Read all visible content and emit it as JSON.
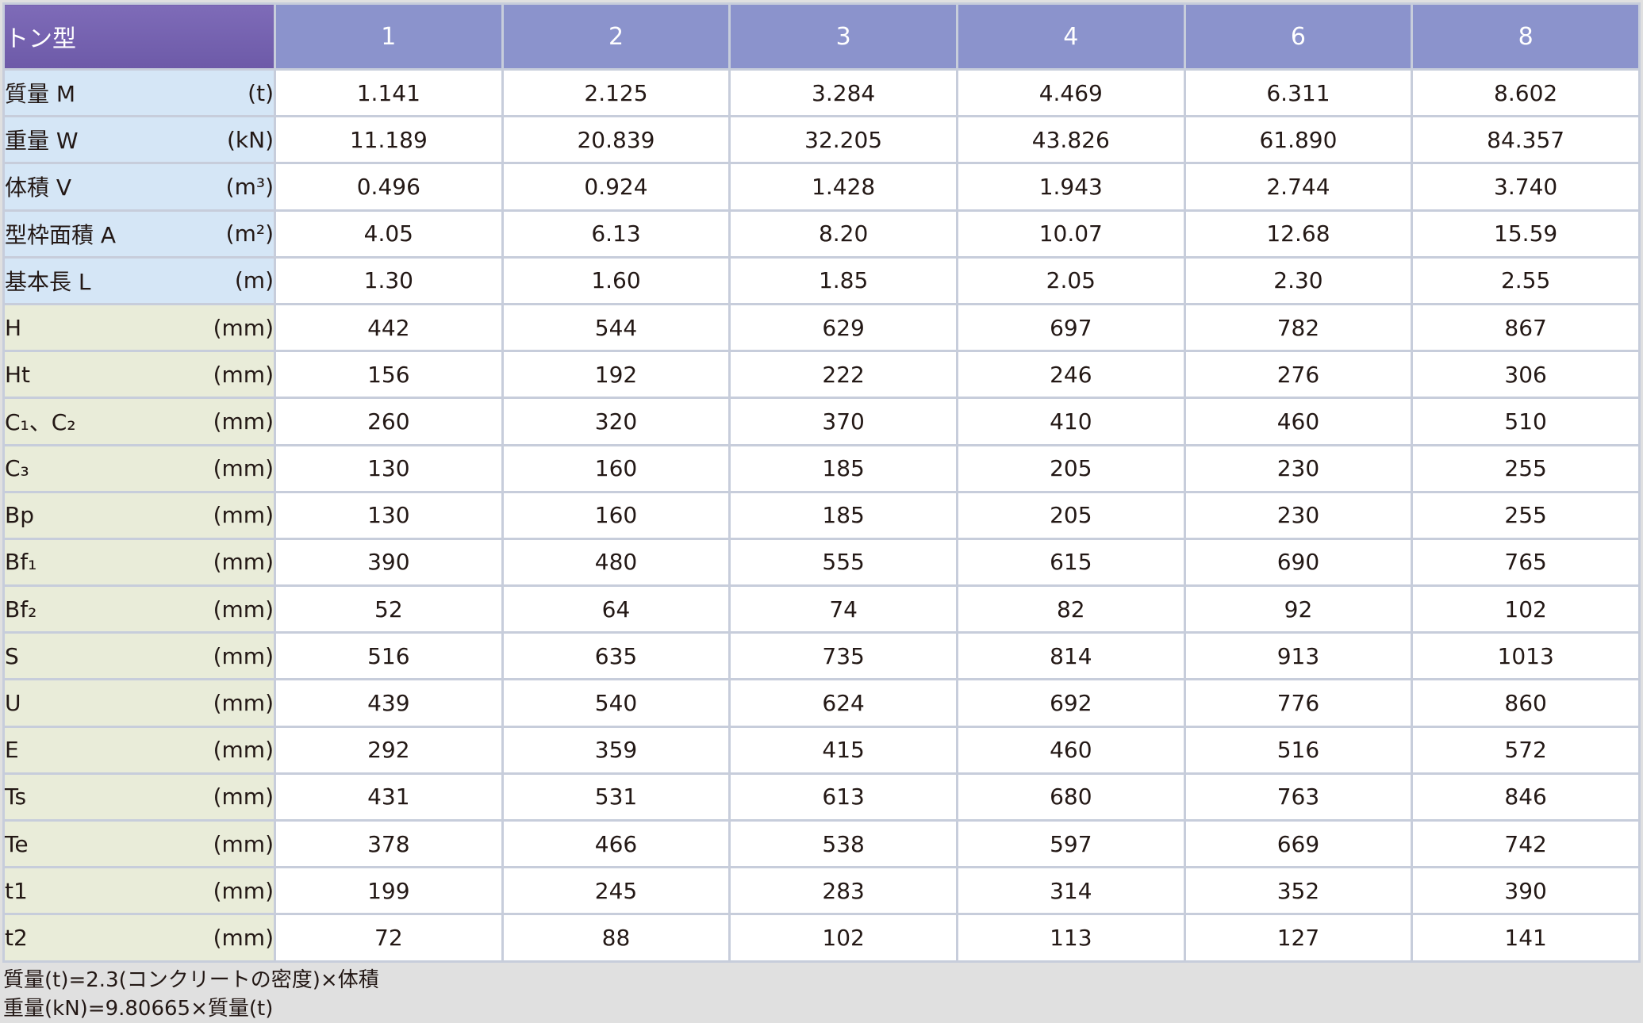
{
  "table": {
    "corner_label": "トン型",
    "columns": [
      "1",
      "2",
      "3",
      "4",
      "6",
      "8"
    ],
    "rows": [
      {
        "name": "質量 M",
        "unit": "(t)",
        "values": [
          "1.141",
          "2.125",
          "3.284",
          "4.469",
          "6.311",
          "8.602"
        ]
      },
      {
        "name": "重量 W",
        "unit": "(kN)",
        "values": [
          "11.189",
          "20.839",
          "32.205",
          "43.826",
          "61.890",
          "84.357"
        ]
      },
      {
        "name": "体積 V",
        "unit": "(m³)",
        "values": [
          "0.496",
          "0.924",
          "1.428",
          "1.943",
          "2.744",
          "3.740"
        ]
      },
      {
        "name": "型枠面積 A",
        "unit": "(m²)",
        "values": [
          "4.05",
          "6.13",
          "8.20",
          "10.07",
          "12.68",
          "15.59"
        ]
      },
      {
        "name": "基本長 L",
        "unit": "(m)",
        "values": [
          "1.30",
          "1.60",
          "1.85",
          "2.05",
          "2.30",
          "2.55"
        ]
      },
      {
        "name": "H",
        "unit": "(mm)",
        "values": [
          "442",
          "544",
          "629",
          "697",
          "782",
          "867"
        ]
      },
      {
        "name": "Ht",
        "unit": "(mm)",
        "values": [
          "156",
          "192",
          "222",
          "246",
          "276",
          "306"
        ]
      },
      {
        "name": "C₁、C₂",
        "unit": "(mm)",
        "values": [
          "260",
          "320",
          "370",
          "410",
          "460",
          "510"
        ]
      },
      {
        "name": "C₃",
        "unit": "(mm)",
        "values": [
          "130",
          "160",
          "185",
          "205",
          "230",
          "255"
        ]
      },
      {
        "name": "Bp",
        "unit": "(mm)",
        "values": [
          "130",
          "160",
          "185",
          "205",
          "230",
          "255"
        ]
      },
      {
        "name": "Bf₁",
        "unit": "(mm)",
        "values": [
          "390",
          "480",
          "555",
          "615",
          "690",
          "765"
        ]
      },
      {
        "name": "Bf₂",
        "unit": "(mm)",
        "values": [
          "52",
          "64",
          "74",
          "82",
          "92",
          "102"
        ]
      },
      {
        "name": "S",
        "unit": "(mm)",
        "values": [
          "516",
          "635",
          "735",
          "814",
          "913",
          "1013"
        ]
      },
      {
        "name": "U",
        "unit": "(mm)",
        "values": [
          "439",
          "540",
          "624",
          "692",
          "776",
          "860"
        ]
      },
      {
        "name": "E",
        "unit": "(mm)",
        "values": [
          "292",
          "359",
          "415",
          "460",
          "516",
          "572"
        ]
      },
      {
        "name": "Ts",
        "unit": "(mm)",
        "values": [
          "431",
          "531",
          "613",
          "680",
          "763",
          "846"
        ]
      },
      {
        "name": "Te",
        "unit": "(mm)",
        "values": [
          "378",
          "466",
          "538",
          "597",
          "669",
          "742"
        ]
      },
      {
        "name": "t1",
        "unit": "(mm)",
        "values": [
          "199",
          "245",
          "283",
          "314",
          "352",
          "390"
        ]
      },
      {
        "name": "t2",
        "unit": "(mm)",
        "values": [
          "72",
          "88",
          "102",
          "113",
          "127",
          "141"
        ]
      }
    ]
  },
  "notes": [
    "質量(t)=2.3(コンクリートの密度)×体積",
    "重量(kN)=9.80665×質量(t)"
  ],
  "colors": {
    "corner_bg": "#6d5aa8",
    "header_bg": "#8b93cc",
    "physical_label_bg": "#d5e6f6",
    "dimension_label_bg": "#e9ecd9",
    "grid_line": "#c7cddb"
  }
}
